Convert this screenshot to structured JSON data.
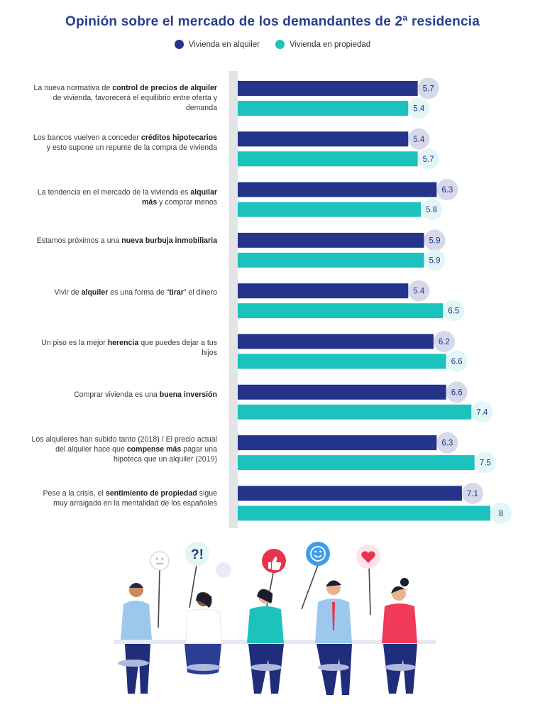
{
  "title": "Opinión sobre el mercado de los demandantes de 2ª residencia",
  "colors": {
    "alquiler": "#24348a",
    "propiedad": "#1cc2bd",
    "badge_alquiler": "#d5d9ea",
    "badge_propiedad": "#e2f6f5"
  },
  "legend": [
    {
      "label": "Vivienda en alquiler",
      "color": "#24348a"
    },
    {
      "label": "Vivienda en propiedad",
      "color": "#1cc2bd"
    }
  ],
  "statements": [
    {
      "pre": "La nueva normativa de ",
      "bold": "control de precios de alquiler",
      "post": " de vivienda, favorecerá el equilibrio entre oferta y demanda"
    },
    {
      "pre": "Los bancos vuelven a conceder ",
      "bold": "créditos hipotecarios",
      "post": " y esto supone un repunte de la compra de vivienda"
    },
    {
      "pre": "La tendencia en el mercado de la vivienda es ",
      "bold": "alquilar más",
      "post": " y comprar menos"
    },
    {
      "pre": "Estamos próximos a una ",
      "bold": "nueva burbuja inmobiliaria",
      "post": ""
    },
    {
      "pre": "Vivir de ",
      "bold": "alquiler",
      "post": " es una forma de “",
      "bold2": "tirar",
      "post2": "” el dinero"
    },
    {
      "pre": "Un piso es la mejor ",
      "bold": "herencia",
      "post": " que puedes dejar a tus hijos"
    },
    {
      "pre": "Comprar vivienda es una ",
      "bold": "buena inversión",
      "post": ""
    },
    {
      "pre": "Los alquileres han subido tanto (2018) / El precio actual del alquiler hace que ",
      "bold": "compense más",
      "post": " pagar una hipoteca que un alquiler (2019)"
    },
    {
      "pre": "Pese a la crisis, el ",
      "bold": "sentimiento de propiedad",
      "post": " sigue muy arraigado en la mentalidad de los españoles"
    }
  ],
  "chart_data": {
    "type": "bar",
    "orientation": "horizontal",
    "title": "Opinión sobre el mercado de los demandantes de 2ª residencia",
    "legend_position": "top",
    "grid": false,
    "series": [
      {
        "name": "Vivienda en alquiler",
        "values": [
          5.7,
          5.4,
          6.3,
          5.9,
          5.4,
          6.2,
          6.6,
          6.3,
          7.1
        ],
        "labels": [
          "5.7",
          "5.4",
          "6.3",
          "5.9",
          "5.4",
          "6.2",
          "6.6",
          "6.3",
          "7.1"
        ]
      },
      {
        "name": "Vivienda en propiedad",
        "values": [
          5.4,
          5.7,
          5.8,
          5.9,
          6.5,
          6.6,
          7.4,
          7.5,
          8.0
        ],
        "labels": [
          "5.4",
          "5.7",
          "5.8",
          "5.9",
          "6.5",
          "6.6",
          "7.4",
          "7.5",
          "8"
        ]
      }
    ],
    "xlim": [
      0,
      8
    ]
  },
  "illustration": {
    "signs": [
      "neutral-face-sign",
      "question-exclamation-sign",
      "thumbs-up-sign",
      "smiley-sign",
      "heart-sign"
    ],
    "sign_text": "?!"
  }
}
